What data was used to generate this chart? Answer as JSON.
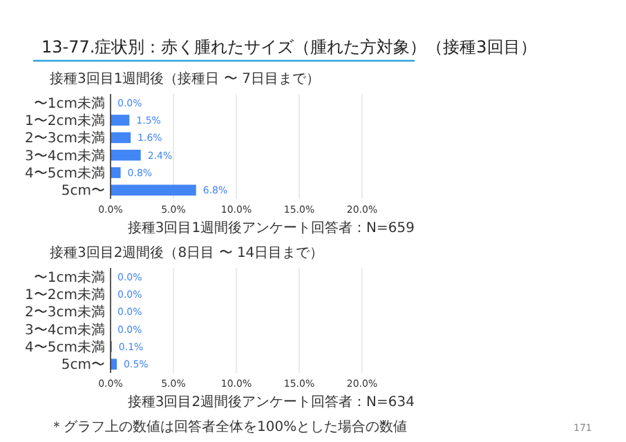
{
  "chart_data": [
    {
      "type": "bar",
      "orientation": "horizontal",
      "title": "接種3回目1週間後（接種日 〜 7日目まで）",
      "annotations": [
        "13-77.症状別：赤く腫れたサイズ（腫れた方対象）（接種3回目）",
        "接種3回目1週間後アンケート回答者：N=659"
      ],
      "categories": [
        "〜1cm未満",
        "1〜2cm未満",
        "2〜3cm未満",
        "3〜4cm未満",
        "4〜5cm未満",
        "5cm〜"
      ],
      "values": [
        0.0,
        1.5,
        1.6,
        2.4,
        0.8,
        6.8
      ],
      "value_labels": [
        "0.0%",
        "1.5%",
        "1.6%",
        "2.4%",
        "0.8%",
        "6.8%"
      ],
      "color": "#4285f4",
      "xlim": [
        0,
        20
      ],
      "xticks": [
        {
          "value": 0,
          "label": "0.0%"
        },
        {
          "value": 5,
          "label": "5.0%"
        },
        {
          "value": 10,
          "label": "10.0%"
        },
        {
          "value": 15,
          "label": "15.0%"
        },
        {
          "value": 20,
          "label": "20.0%"
        }
      ],
      "grid": "x"
    },
    {
      "type": "bar",
      "orientation": "horizontal",
      "title": "接種3回目2週間後（8日目 〜 14日目まで）",
      "annotations": [
        "接種3回目2週間後アンケート回答者：N=634",
        "＊グラフ上の数値は回答者全体を100%とした場合の数値",
        "171"
      ],
      "categories": [
        "〜1cm未満",
        "1〜2cm未満",
        "2〜3cm未満",
        "3〜4cm未満",
        "4〜5cm未満",
        "5cm〜"
      ],
      "values": [
        0.0,
        0.0,
        0.0,
        0.0,
        0.1,
        0.5
      ],
      "value_labels": [
        "0.0%",
        "0.0%",
        "0.0%",
        "0.0%",
        "0.1%",
        "0.5%"
      ],
      "color": "#4285f4",
      "xlim": [
        0,
        20
      ],
      "xticks": [
        {
          "value": 0,
          "label": "0.0%"
        },
        {
          "value": 5,
          "label": "5.0%"
        },
        {
          "value": 10,
          "label": "10.0%"
        },
        {
          "value": 15,
          "label": "15.0%"
        },
        {
          "value": 20,
          "label": "20.0%"
        }
      ],
      "grid": "x"
    }
  ]
}
